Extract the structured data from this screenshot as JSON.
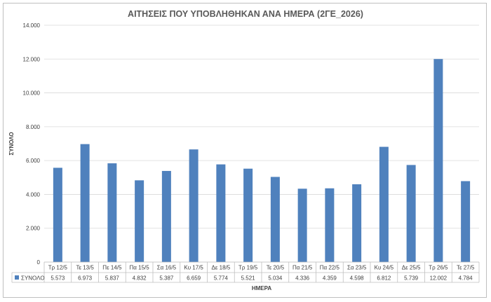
{
  "chart_data": {
    "type": "bar",
    "title": "ΑΙΤΗΣΕΙΣ ΠΟΥ ΥΠΟΒΛΗΘΗΚΑΝ ΑΝΑ ΗΜΕΡΑ (2ΓΕ_2026)",
    "xlabel": "ΗΜΕΡΑ",
    "ylabel": "ΣΥΝΟΛΟ",
    "ylim": [
      0,
      14000
    ],
    "yticks": [
      "0",
      "2.000",
      "4.000",
      "6.000",
      "8.000",
      "10.000",
      "12.000",
      "14.000"
    ],
    "ytick_values": [
      0,
      2000,
      4000,
      6000,
      8000,
      10000,
      12000,
      14000
    ],
    "grid": true,
    "legend_position": "data-table-left",
    "categories": [
      "Τρ 12/5",
      "Τε 13/5",
      "Πε 14/5",
      "Πα 15/5",
      "Σα 16/5",
      "Κυ 17/5",
      "Δε 18/5",
      "Τρ 19/5",
      "Τε 20/5",
      "Πα 21/5",
      "Πα 22/5",
      "Σα 23/5",
      "Κυ 24/5",
      "Δε 25/5",
      "Τρ 26/5",
      "Τε 27/5"
    ],
    "series": [
      {
        "name": "ΣΥΝΟΛΟ",
        "color": "#4f81bd",
        "values": [
          5573,
          6973,
          5837,
          4832,
          5387,
          6659,
          5774,
          5521,
          5034,
          4336,
          4359,
          4598,
          6812,
          5739,
          12002,
          4784
        ],
        "labels": [
          "5.573",
          "6.973",
          "5.837",
          "4.832",
          "5.387",
          "6.659",
          "5.774",
          "5.521",
          "5.034",
          "4.336",
          "4.359",
          "4.598",
          "6.812",
          "5.739",
          "12.002",
          "4.784"
        ]
      }
    ]
  }
}
